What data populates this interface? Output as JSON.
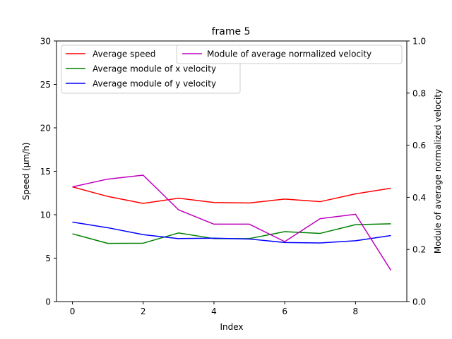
{
  "chart_data": {
    "type": "line",
    "title": "frame 5",
    "xlabel": "Index",
    "ylabel_left": "Speed (μm/h)",
    "ylabel_right": "Module of average normalized velocity",
    "x": [
      0,
      1,
      2,
      3,
      4,
      5,
      6,
      7,
      8,
      9
    ],
    "xlim": [
      -0.45,
      9.45
    ],
    "x_ticks": [
      0,
      2,
      4,
      6,
      8
    ],
    "ylim_left": [
      0,
      30
    ],
    "y_ticks_left": [
      0,
      5,
      10,
      15,
      20,
      25,
      30
    ],
    "ylim_right": [
      0,
      1
    ],
    "y_ticks_right": [
      "0.0",
      "0.2",
      "0.4",
      "0.6",
      "0.8",
      "1.0"
    ],
    "grid": false,
    "legend_placement": "upper-left",
    "series": [
      {
        "name": "Average speed",
        "axis": "left",
        "color": "#ff0000",
        "values": [
          13.2,
          12.1,
          11.3,
          11.9,
          11.4,
          11.35,
          11.8,
          11.5,
          12.4,
          13.05
        ]
      },
      {
        "name": "Average module of x velocity",
        "axis": "left",
        "color": "#008000",
        "values": [
          7.8,
          6.7,
          6.72,
          7.9,
          7.25,
          7.25,
          8.05,
          7.85,
          8.85,
          8.95
        ]
      },
      {
        "name": "Average module of y velocity",
        "axis": "left",
        "color": "#0000ff",
        "values": [
          9.15,
          8.5,
          7.7,
          7.25,
          7.3,
          7.2,
          6.8,
          6.75,
          7.0,
          7.6
        ]
      },
      {
        "name": "Module of average normalized velocity",
        "axis": "right",
        "color": "#bf00bf",
        "values": [
          0.44,
          0.47,
          0.485,
          0.352,
          0.297,
          0.297,
          0.23,
          0.318,
          0.335,
          0.12
        ]
      }
    ]
  }
}
